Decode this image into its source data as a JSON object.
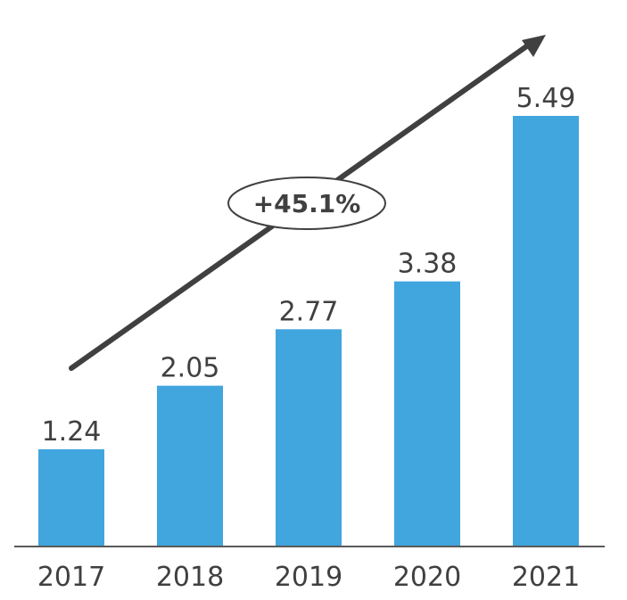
{
  "chart_data": {
    "type": "bar",
    "categories": [
      "2017",
      "2018",
      "2019",
      "2020",
      "2021"
    ],
    "values": [
      1.24,
      2.05,
      2.77,
      3.38,
      5.49
    ],
    "data_labels": [
      "1.24",
      "2.05",
      "2.77",
      "3.38",
      "5.49"
    ],
    "ylim": [
      0,
      5.49
    ],
    "grid": false,
    "annotation": "+45.1%",
    "colors": {
      "bar": "#41A5DE",
      "axis": "#595959",
      "arrow": "#404040",
      "text": "#404040"
    }
  }
}
